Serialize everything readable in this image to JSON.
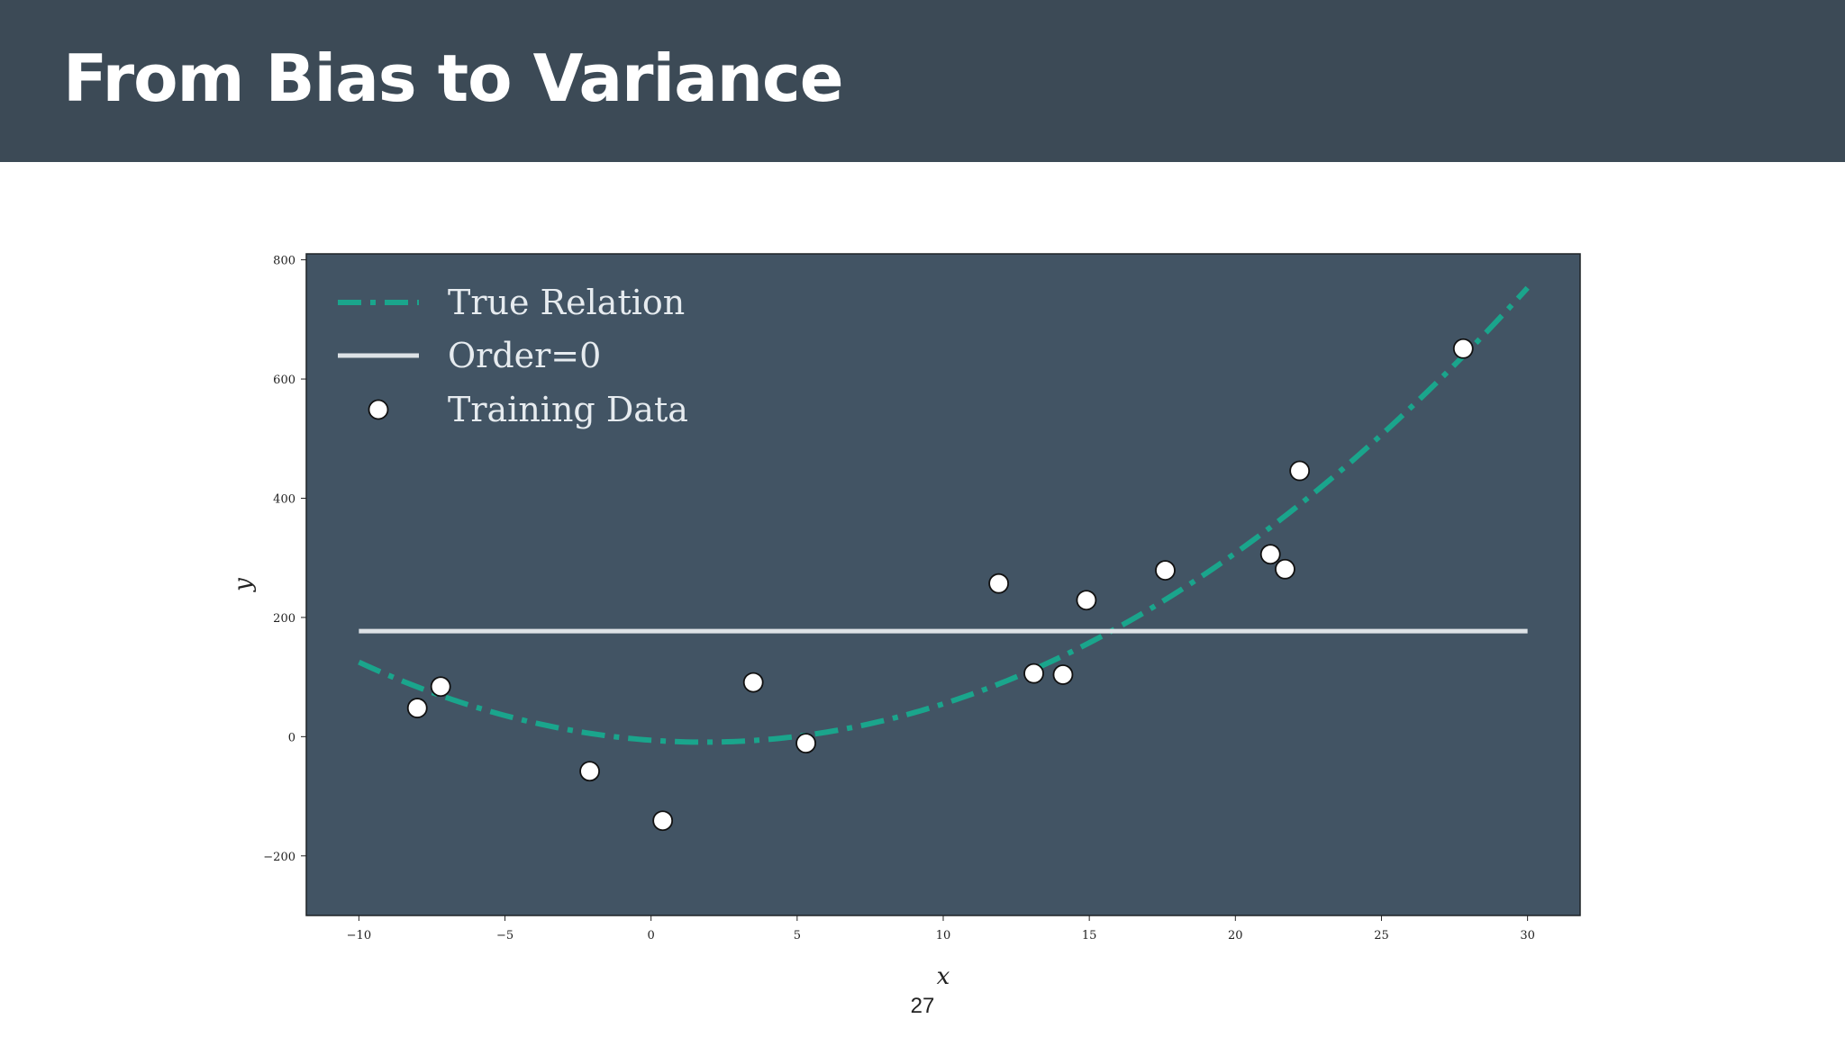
{
  "slide": {
    "title": "From Bias to Variance",
    "page_number": "27"
  },
  "colors": {
    "header_bg": "#3c4a56",
    "plot_bg": "#425464",
    "true_relation": "#1aa58c",
    "order0": "#dde2e6",
    "point_fill": "#ffffff",
    "point_edge": "#111111"
  },
  "chart_data": {
    "type": "scatter",
    "title": "",
    "xlabel": "x",
    "ylabel": "y",
    "xlim": [
      -11.8,
      31.8
    ],
    "ylim": [
      -300,
      810
    ],
    "x_ticks": [
      -10,
      -5,
      0,
      5,
      10,
      15,
      20,
      25,
      30
    ],
    "x_tick_labels": [
      "−10",
      "−5",
      "0",
      "5",
      "10",
      "15",
      "20",
      "25",
      "30"
    ],
    "y_ticks": [
      -200,
      0,
      200,
      400,
      600,
      800
    ],
    "y_tick_labels": [
      "−200",
      "0",
      "200",
      "400",
      "600",
      "800"
    ],
    "grid": false,
    "legend_position": "upper-left",
    "series": [
      {
        "name": "True Relation",
        "kind": "curve",
        "style": "dash-dot",
        "x_range": [
          -10,
          30
        ],
        "coefficients": {
          "a": 0.96,
          "b": -3.5,
          "c": -6
        }
      },
      {
        "name": "Order=0",
        "kind": "line",
        "style": "solid",
        "x": [
          -10,
          30
        ],
        "y": [
          177,
          177
        ]
      },
      {
        "name": "Training Data",
        "kind": "points",
        "points": [
          {
            "x": -8.0,
            "y": 48
          },
          {
            "x": -7.2,
            "y": 84
          },
          {
            "x": -2.1,
            "y": -58
          },
          {
            "x": 0.4,
            "y": -141
          },
          {
            "x": 3.5,
            "y": 91
          },
          {
            "x": 5.3,
            "y": -11
          },
          {
            "x": 11.9,
            "y": 257
          },
          {
            "x": 13.1,
            "y": 106
          },
          {
            "x": 14.1,
            "y": 104
          },
          {
            "x": 14.9,
            "y": 229
          },
          {
            "x": 17.6,
            "y": 279
          },
          {
            "x": 21.2,
            "y": 306
          },
          {
            "x": 21.7,
            "y": 281
          },
          {
            "x": 22.2,
            "y": 446
          },
          {
            "x": 27.8,
            "y": 651
          }
        ]
      }
    ]
  }
}
